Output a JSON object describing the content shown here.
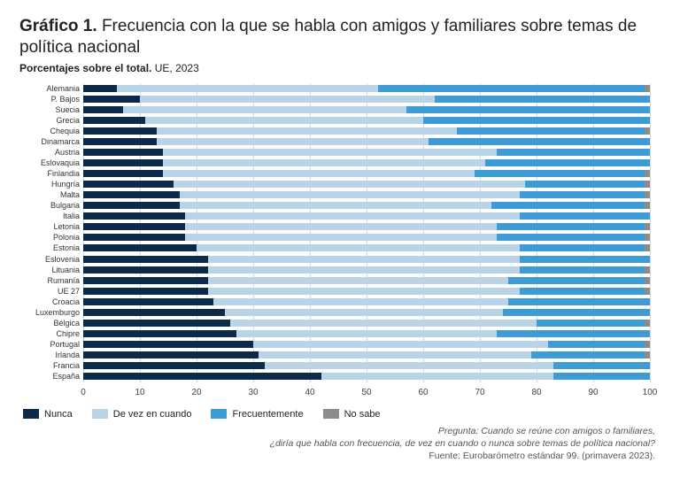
{
  "title_prefix": "Gráfico 1.",
  "title_rest": "Frecuencia con la que se habla con amigos y familiares sobre temas de política nacional",
  "subtitle_bold": "Porcentajes sobre el total.",
  "subtitle_rest": "UE, 2023",
  "footnote_q1": "Pregunta: Cuando se reúne con amigos o familiares,",
  "footnote_q2": "¿diría que habla con frecuencia, de vez en cuando o nunca sobre temas de política nacional?",
  "footnote_src": "Fuente: Eurobarómetro estándar 99. (primavera 2023).",
  "chart": {
    "type": "stacked-horizontal-bar",
    "xmin": 0,
    "xmax": 100,
    "xtick_step": 10,
    "grid_color": "#d9d9d9",
    "background_color": "#ffffff",
    "label_fontsize": 9,
    "tick_fontsize": 10,
    "series": [
      {
        "key": "nunca",
        "label": "Nunca",
        "color": "#0e2a4a"
      },
      {
        "key": "aveces",
        "label": "De vez en cuando",
        "color": "#b9d4e6"
      },
      {
        "key": "frec",
        "label": "Frecuentemente",
        "color": "#3e9bd6"
      },
      {
        "key": "nosabe",
        "label": "No sabe",
        "color": "#8b8b8b"
      }
    ],
    "rows": [
      {
        "label": "Alemania",
        "nunca": 6,
        "aveces": 46,
        "frec": 47,
        "nosabe": 1
      },
      {
        "label": "P. Bajos",
        "nunca": 10,
        "aveces": 52,
        "frec": 38,
        "nosabe": 0
      },
      {
        "label": "Suecia",
        "nunca": 7,
        "aveces": 50,
        "frec": 43,
        "nosabe": 0
      },
      {
        "label": "Grecia",
        "nunca": 11,
        "aveces": 49,
        "frec": 40,
        "nosabe": 0
      },
      {
        "label": "Chequia",
        "nunca": 13,
        "aveces": 53,
        "frec": 33,
        "nosabe": 1
      },
      {
        "label": "Dinamarca",
        "nunca": 13,
        "aveces": 48,
        "frec": 39,
        "nosabe": 0
      },
      {
        "label": "Austria",
        "nunca": 14,
        "aveces": 59,
        "frec": 27,
        "nosabe": 0
      },
      {
        "label": "Eslovaquia",
        "nunca": 14,
        "aveces": 57,
        "frec": 29,
        "nosabe": 0
      },
      {
        "label": "Finlandia",
        "nunca": 14,
        "aveces": 55,
        "frec": 30,
        "nosabe": 1
      },
      {
        "label": "Hungría",
        "nunca": 16,
        "aveces": 62,
        "frec": 21,
        "nosabe": 1
      },
      {
        "label": "Malta",
        "nunca": 17,
        "aveces": 60,
        "frec": 22,
        "nosabe": 1
      },
      {
        "label": "Bulgaria",
        "nunca": 17,
        "aveces": 55,
        "frec": 27,
        "nosabe": 1
      },
      {
        "label": "Italia",
        "nunca": 18,
        "aveces": 59,
        "frec": 23,
        "nosabe": 0
      },
      {
        "label": "Letonia",
        "nunca": 18,
        "aveces": 55,
        "frec": 26,
        "nosabe": 1
      },
      {
        "label": "Polonia",
        "nunca": 18,
        "aveces": 55,
        "frec": 26,
        "nosabe": 1
      },
      {
        "label": "Estonia",
        "nunca": 20,
        "aveces": 57,
        "frec": 22,
        "nosabe": 1
      },
      {
        "label": "Eslovenia",
        "nunca": 22,
        "aveces": 55,
        "frec": 23,
        "nosabe": 0
      },
      {
        "label": "Lituania",
        "nunca": 22,
        "aveces": 55,
        "frec": 22,
        "nosabe": 1
      },
      {
        "label": "Rumanía",
        "nunca": 22,
        "aveces": 53,
        "frec": 24,
        "nosabe": 1
      },
      {
        "label": "UE 27",
        "nunca": 22,
        "aveces": 55,
        "frec": 22,
        "nosabe": 1
      },
      {
        "label": "Croacia",
        "nunca": 23,
        "aveces": 52,
        "frec": 25,
        "nosabe": 0
      },
      {
        "label": "Luxemburgo",
        "nunca": 25,
        "aveces": 49,
        "frec": 26,
        "nosabe": 0
      },
      {
        "label": "Bélgica",
        "nunca": 26,
        "aveces": 54,
        "frec": 19,
        "nosabe": 1
      },
      {
        "label": "Chipre",
        "nunca": 27,
        "aveces": 46,
        "frec": 27,
        "nosabe": 0
      },
      {
        "label": "Portugal",
        "nunca": 30,
        "aveces": 52,
        "frec": 17,
        "nosabe": 1
      },
      {
        "label": "Irlanda",
        "nunca": 31,
        "aveces": 48,
        "frec": 20,
        "nosabe": 1
      },
      {
        "label": "Francia",
        "nunca": 32,
        "aveces": 51,
        "frec": 17,
        "nosabe": 0
      },
      {
        "label": "España",
        "nunca": 42,
        "aveces": 41,
        "frec": 17,
        "nosabe": 0
      }
    ]
  }
}
